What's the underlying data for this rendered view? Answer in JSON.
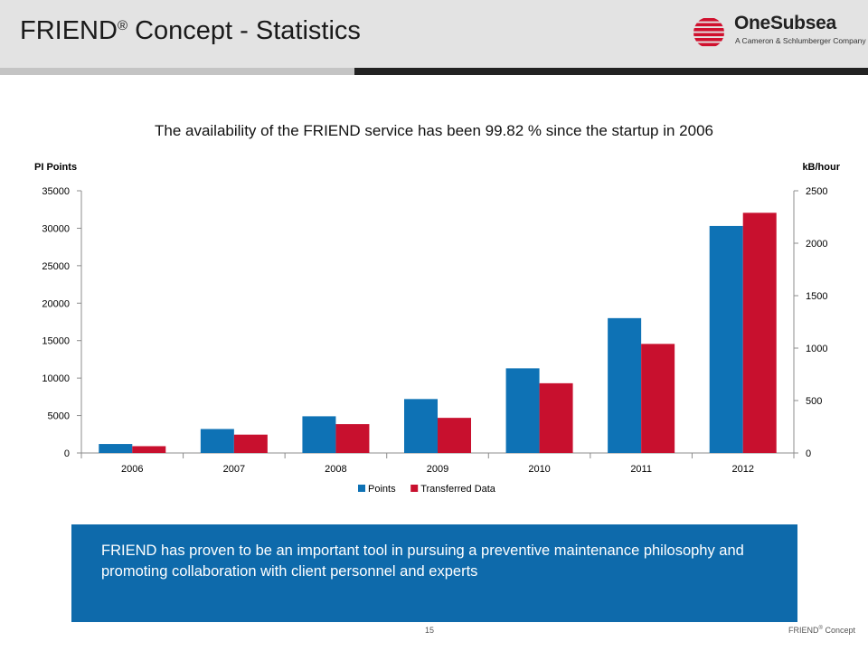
{
  "slide": {
    "title": "FRIEND",
    "title_mark": "®",
    "title_rest": " Concept - Statistics",
    "subtitle": "The availability of the FRIEND service has been 99.82 % since the startup in 2006",
    "callout": "FRIEND has proven to be an important tool in pursuing a preventive maintenance philosophy and promoting collaboration with client personnel and experts",
    "page_number": "15",
    "footer_name": "FRIEND",
    "footer_mark": "®",
    "footer_rest": " Concept"
  },
  "logo": {
    "name": "OneSubsea",
    "tagline": "A Cameron & Schlumberger Company",
    "color": "#d0102e"
  },
  "chart_data": {
    "type": "bar",
    "categories": [
      "2006",
      "2007",
      "2008",
      "2009",
      "2010",
      "2011",
      "2012"
    ],
    "series": [
      {
        "name": "Points",
        "axis": "left",
        "color": "#0e72b5",
        "values": [
          1200,
          3200,
          4900,
          7200,
          11300,
          18000,
          30300
        ]
      },
      {
        "name": "Transferred Data",
        "axis": "right",
        "color": "#c8102e",
        "values": [
          65,
          175,
          275,
          335,
          665,
          1040,
          2290
        ]
      }
    ],
    "ylabel": "PI Points",
    "ylabel_right": "kB/hour",
    "ylim": [
      0,
      35000
    ],
    "ylim_right": [
      0,
      2500
    ],
    "yticks": [
      0,
      5000,
      10000,
      15000,
      20000,
      25000,
      30000,
      35000
    ],
    "yticks_right": [
      0,
      500,
      1000,
      1500,
      2000,
      2500
    ],
    "grid": false,
    "legend_position": "bottom"
  }
}
